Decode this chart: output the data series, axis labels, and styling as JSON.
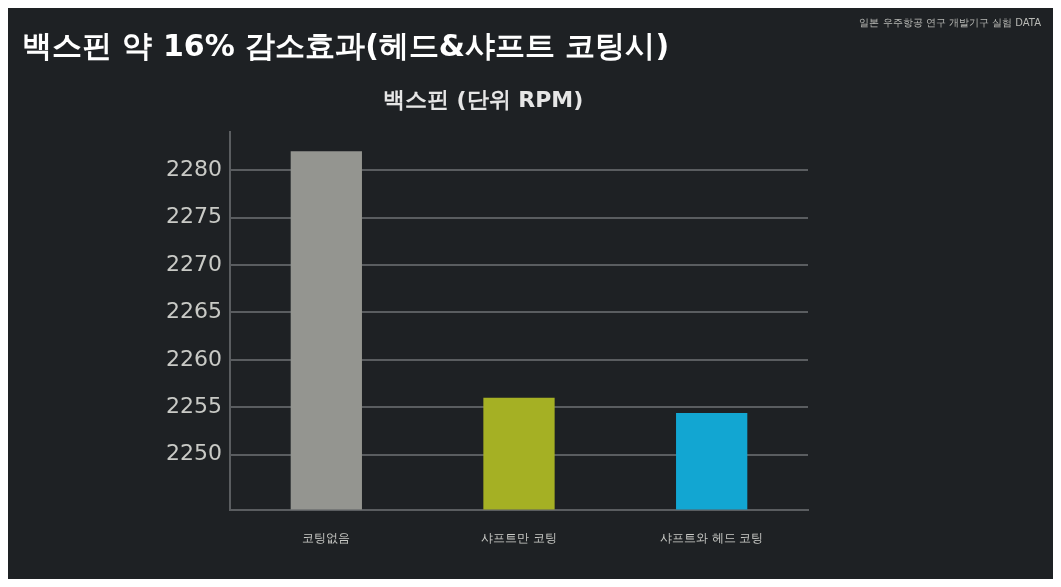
{
  "chart_data": {
    "type": "bar",
    "title": "백스핀 약 16% 감소효과(헤드&샤프트 코팅시)",
    "subtitle": "백스핀 (단위 RPM)",
    "annotations": [
      "일본 우주항공 연구 개발기구 실험 DATA"
    ],
    "categories": [
      "코팅없음",
      "샤프트만 코팅",
      "샤프트와 헤드 코팅"
    ],
    "values": [
      2282,
      2256,
      2254.4
    ],
    "colors": [
      "#949590",
      "#a5b024",
      "#12a6d2"
    ],
    "ylim": [
      2244.2,
      2284
    ],
    "yticks": [
      2250,
      2255,
      2260,
      2265,
      2270,
      2275,
      2280
    ],
    "grid": "y",
    "legend": false
  }
}
